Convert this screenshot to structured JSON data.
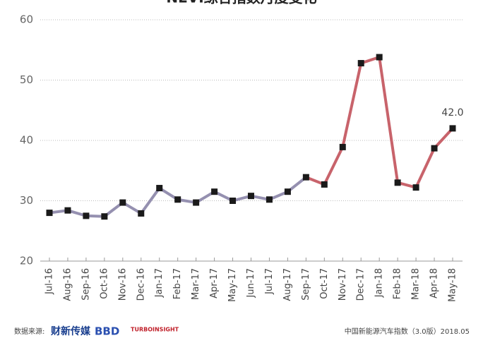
{
  "chart_data": {
    "type": "line",
    "title": "NEVI综合指数月度变化",
    "categories": [
      "Jul-16",
      "Aug-16",
      "Sep-16",
      "Oct-16",
      "Nov-16",
      "Dec-16",
      "Jan-17",
      "Feb-17",
      "Mar-17",
      "Apr-17",
      "May-17",
      "Jun-17",
      "Jul-17",
      "Aug-17",
      "Sep-17",
      "Oct-17",
      "Nov-17",
      "Dec-17",
      "Jan-18",
      "Feb-18",
      "Mar-18",
      "Apr-18",
      "May-18"
    ],
    "series": [
      {
        "name": "NEVI",
        "color": "#9590b0",
        "recent_color": "#c8636b",
        "recent_from": "Sep-17",
        "values": [
          28.0,
          28.4,
          27.5,
          27.4,
          29.7,
          27.9,
          32.1,
          30.2,
          29.7,
          31.5,
          30.0,
          30.8,
          30.2,
          31.5,
          33.9,
          32.7,
          38.9,
          52.8,
          53.8,
          33.0,
          32.2,
          38.7,
          42.0
        ],
        "value_labels": [
          null,
          null,
          null,
          null,
          null,
          null,
          null,
          null,
          null,
          null,
          null,
          null,
          null,
          null,
          null,
          null,
          null,
          null,
          null,
          null,
          null,
          null,
          "42.0"
        ]
      }
    ],
    "ylim": [
      20,
      60
    ],
    "yticks": [
      20,
      30,
      40,
      50,
      60
    ],
    "grid": true,
    "footer": {
      "source_label": "数据来源:",
      "sources": [
        "财新传媒",
        "BBD",
        "TURBOINSIGHT"
      ],
      "note": "中国新能源汽车指数（3.0版）2018.05"
    }
  }
}
